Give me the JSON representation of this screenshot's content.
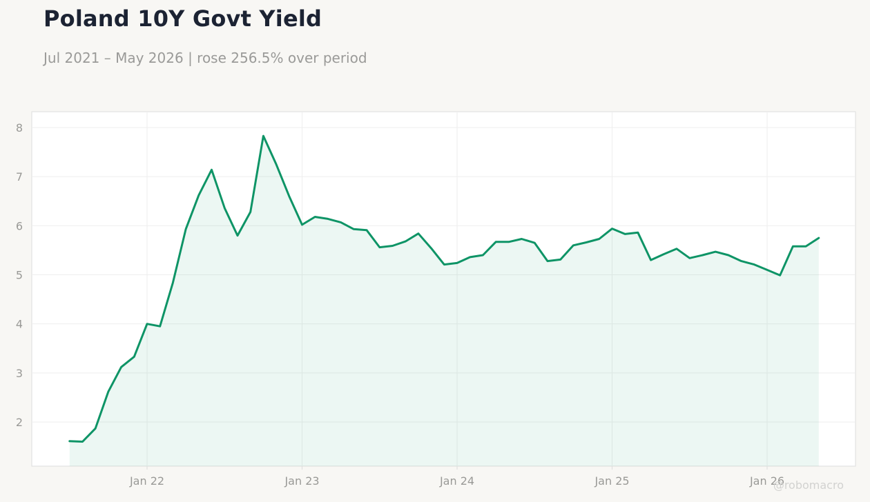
{
  "title": "Poland 10Y Govt Yield",
  "subtitle": "Jul 2021 – May 2026 | rose 256.5% over period",
  "watermark": "@robomacro",
  "colors": {
    "line": "#0e9466",
    "fill": "#0e9466",
    "axis_text": "#999996",
    "grid": "#eeeeee",
    "frame": "#dddddd",
    "page_bg": "#f8f7f4",
    "plot_bg": "#ffffff"
  },
  "chart_data": {
    "type": "area",
    "x_ticks": [
      "Jan 22",
      "Jan 23",
      "Jan 24",
      "Jan 25",
      "Jan 26"
    ],
    "y_ticks": [
      2,
      3,
      4,
      5,
      6,
      7,
      8
    ],
    "grid": true,
    "series": [
      {
        "x": [
          "2021-07",
          "2021-08",
          "2021-09",
          "2021-10",
          "2021-11",
          "2021-12",
          "2022-01",
          "2022-02",
          "2022-03",
          "2022-04",
          "2022-05",
          "2022-06",
          "2022-07",
          "2022-08",
          "2022-09",
          "2022-10",
          "2022-11",
          "2022-12",
          "2023-01",
          "2023-02",
          "2023-03",
          "2023-04",
          "2023-05",
          "2023-06",
          "2023-07",
          "2023-08",
          "2023-09",
          "2023-10",
          "2023-11",
          "2023-12",
          "2024-01",
          "2024-02",
          "2024-03",
          "2024-04",
          "2024-05",
          "2024-06",
          "2024-07",
          "2024-08",
          "2024-09",
          "2024-10",
          "2024-11",
          "2024-12",
          "2025-01",
          "2025-02",
          "2025-03",
          "2025-04",
          "2025-05",
          "2025-06",
          "2025-07",
          "2025-08",
          "2025-09",
          "2025-10",
          "2025-11",
          "2025-12",
          "2026-01",
          "2026-02",
          "2026-03",
          "2026-04",
          "2026-05"
        ],
        "values": [
          1.61,
          1.6,
          1.87,
          2.62,
          3.12,
          3.33,
          4.0,
          3.95,
          4.84,
          5.93,
          6.62,
          7.14,
          6.36,
          5.8,
          6.28,
          7.83,
          7.25,
          6.6,
          6.02,
          6.18,
          6.14,
          6.07,
          5.93,
          5.91,
          5.56,
          5.59,
          5.68,
          5.84,
          5.54,
          5.21,
          5.24,
          5.36,
          5.4,
          5.67,
          5.67,
          5.73,
          5.65,
          5.28,
          5.31,
          5.6,
          5.66,
          5.73,
          5.94,
          5.83,
          5.86,
          5.3,
          5.42,
          5.53,
          5.34,
          5.4,
          5.47,
          5.4,
          5.28,
          5.21,
          5.1,
          4.99,
          5.58,
          5.58,
          5.75
        ]
      }
    ]
  }
}
